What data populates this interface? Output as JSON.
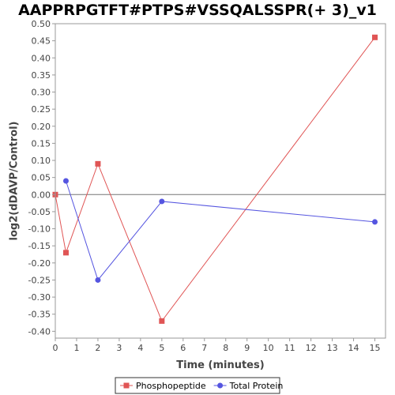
{
  "chart_data": {
    "type": "line",
    "title": "AAPPRPGTFT#PTPS#VSSQALSSPR(+ 3)_v1",
    "xlabel": "Time (minutes)",
    "ylabel": "log2(dDAVP/Control)",
    "xlim": [
      0,
      15.5
    ],
    "ylim": [
      -0.42,
      0.5
    ],
    "x_ticks": [
      0,
      1,
      2,
      3,
      4,
      5,
      6,
      7,
      8,
      9,
      10,
      11,
      12,
      13,
      14,
      15
    ],
    "y_ticks": [
      0.5,
      0.45,
      0.4,
      0.35,
      0.3,
      0.25,
      0.2,
      0.15,
      0.1,
      0.05,
      0.0,
      -0.05,
      -0.1,
      -0.15,
      -0.2,
      -0.25,
      -0.3,
      -0.35,
      -0.4
    ],
    "grid": false,
    "zero_line": true,
    "legend_position": "bottom",
    "series": [
      {
        "name": "Phosphopeptide",
        "color": "#e05555",
        "marker": "square",
        "x": [
          0,
          0.5,
          2,
          5,
          15
        ],
        "y": [
          0.0,
          -0.17,
          0.09,
          -0.37,
          0.46
        ]
      },
      {
        "name": "Total Protein",
        "color": "#5555e0",
        "marker": "circle",
        "x": [
          0.5,
          2,
          5,
          15
        ],
        "y": [
          0.04,
          -0.25,
          -0.02,
          -0.08
        ]
      }
    ]
  }
}
